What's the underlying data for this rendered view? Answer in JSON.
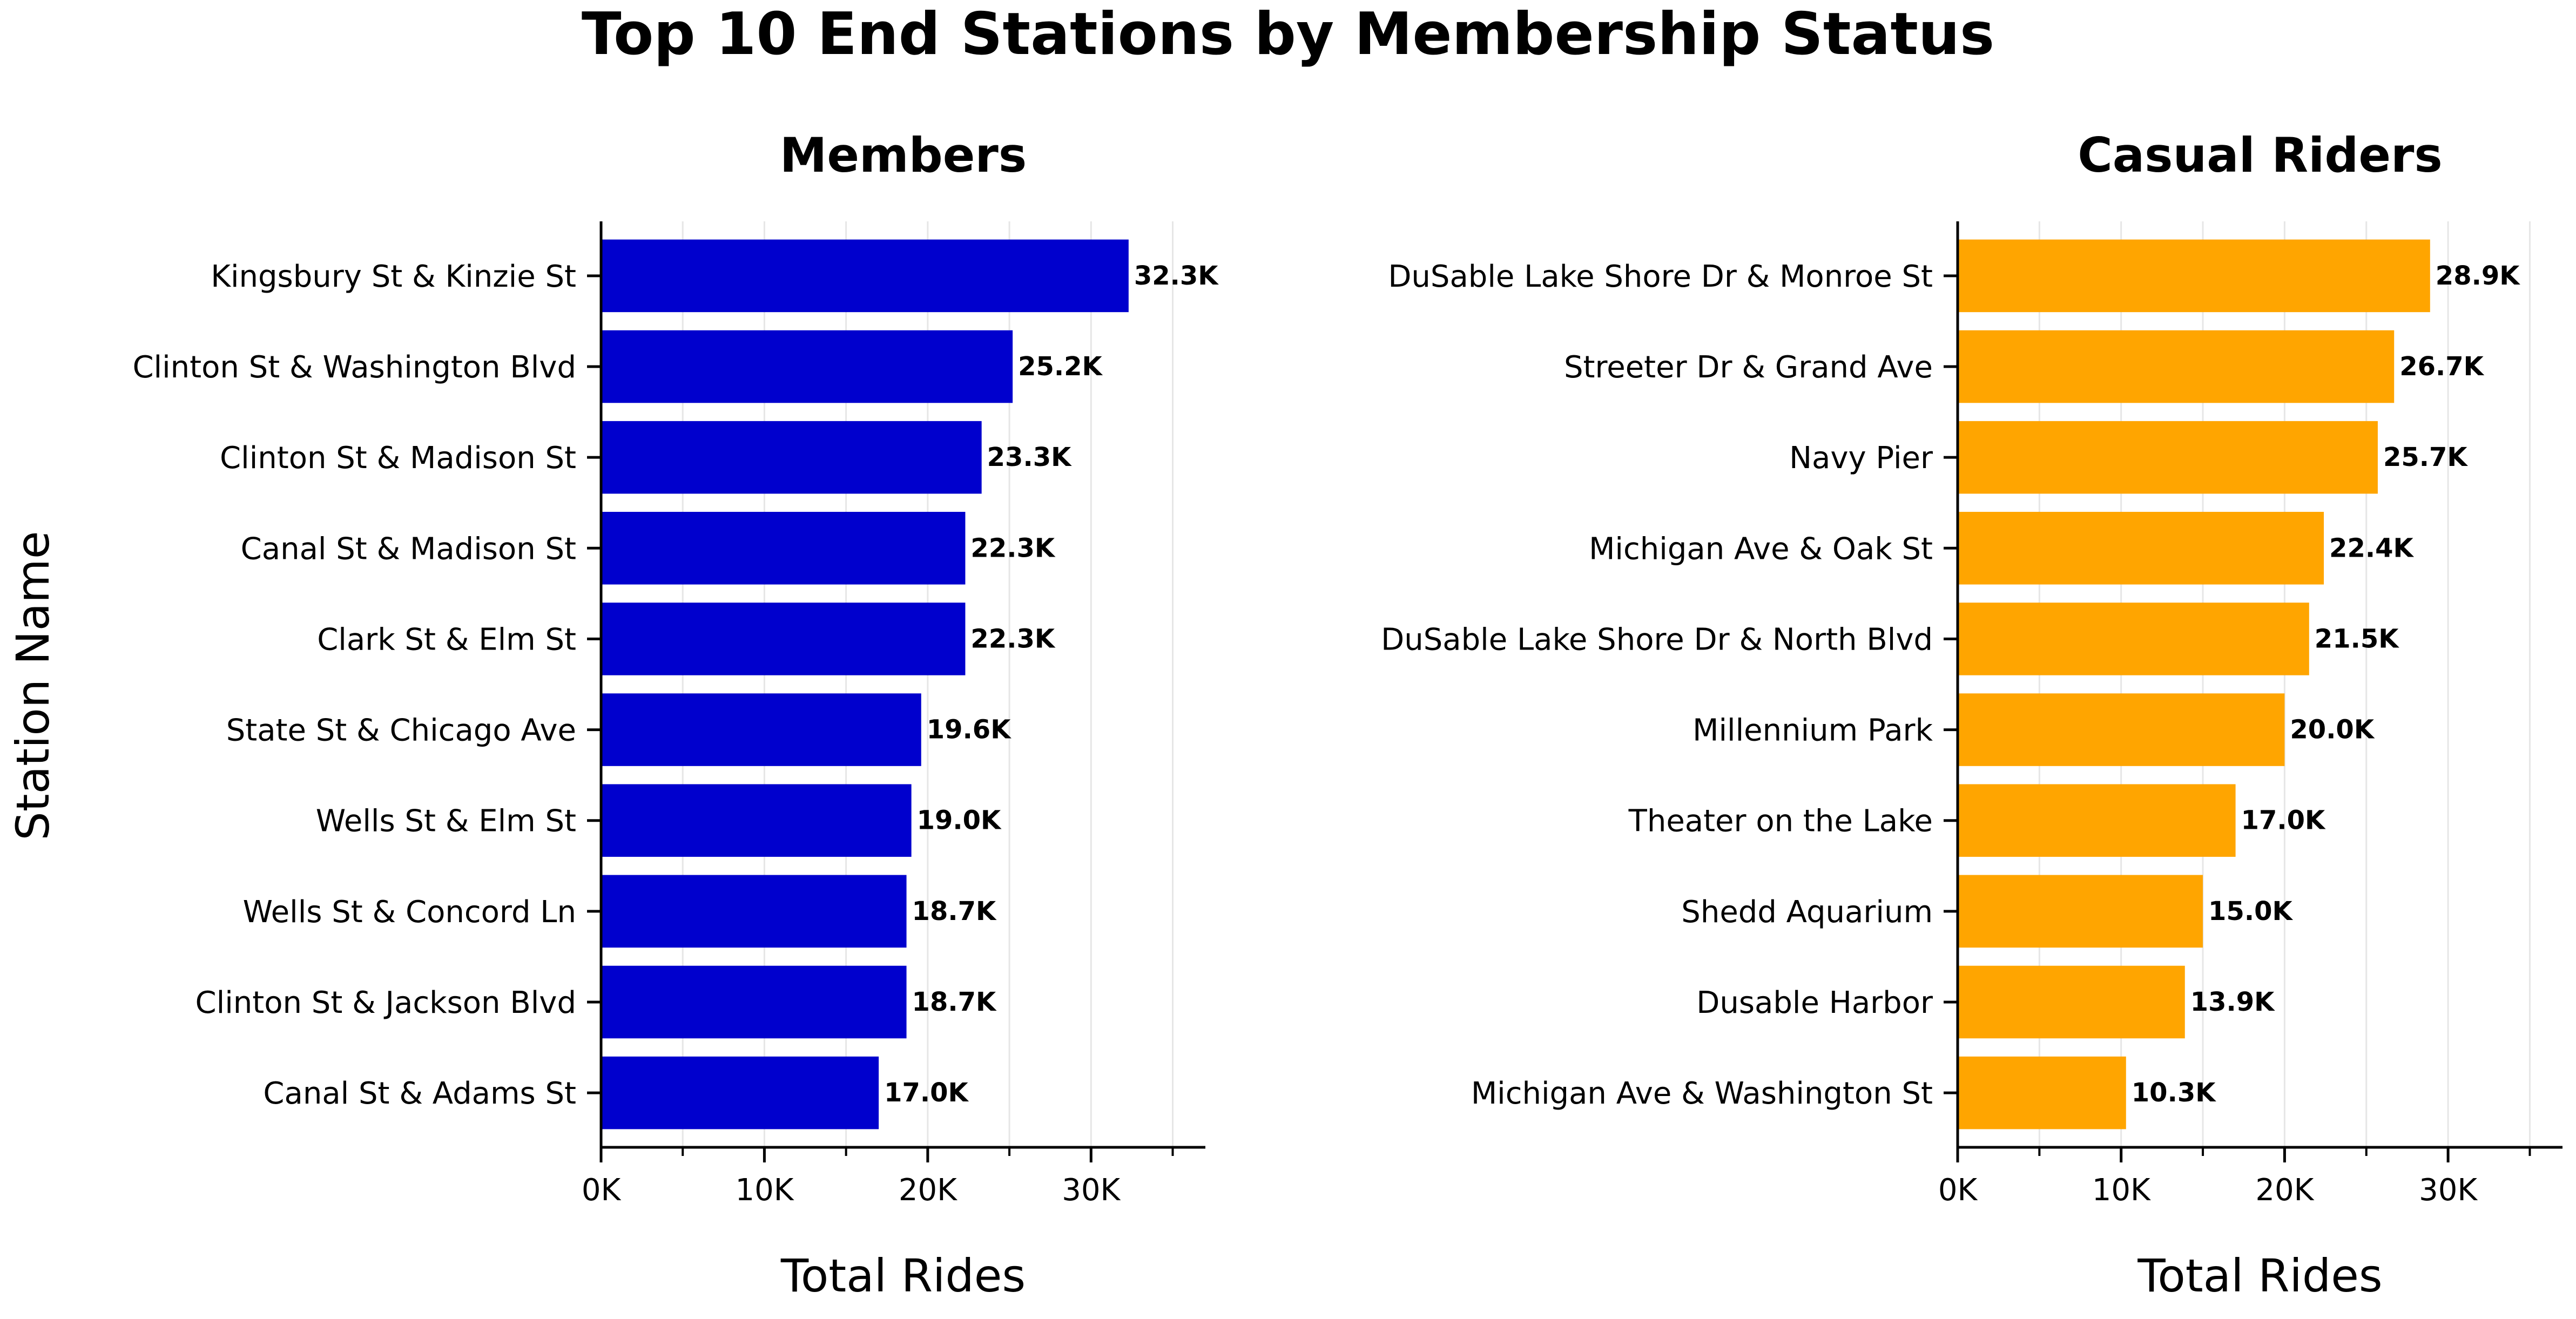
{
  "title": "Top 10 End Stations by Membership Status",
  "ylabel": "Station Name",
  "chart_data": [
    {
      "type": "bar",
      "orientation": "horizontal",
      "title": "Members",
      "xlabel": "Total Rides",
      "ylabel": "Station Name",
      "color": "#0000cd",
      "xlim": [
        0,
        37000
      ],
      "xticks": [
        0,
        10000,
        20000,
        30000
      ],
      "xtick_labels": [
        "0K",
        "10K",
        "20K",
        "30K"
      ],
      "categories": [
        "Kingsbury St & Kinzie St",
        "Clinton St & Washington Blvd",
        "Clinton St & Madison St",
        "Canal St & Madison St",
        "Clark St & Elm St",
        "State St & Chicago Ave",
        "Wells St & Elm St",
        "Wells St & Concord Ln",
        "Clinton St & Jackson Blvd",
        "Canal St & Adams St"
      ],
      "values": [
        32300,
        25200,
        23300,
        22300,
        22300,
        19600,
        19000,
        18700,
        18700,
        17000
      ],
      "data_labels": [
        "32.3K",
        "25.2K",
        "23.3K",
        "22.3K",
        "22.3K",
        "19.6K",
        "19.0K",
        "18.7K",
        "18.7K",
        "17.0K"
      ],
      "grid": "vertical"
    },
    {
      "type": "bar",
      "orientation": "horizontal",
      "title": "Casual Riders",
      "xlabel": "Total Rides",
      "color": "#ffa500",
      "xlim": [
        0,
        37000
      ],
      "xticks": [
        0,
        10000,
        20000,
        30000
      ],
      "xtick_labels": [
        "0K",
        "10K",
        "20K",
        "30K"
      ],
      "categories": [
        "DuSable Lake Shore Dr & Monroe St",
        "Streeter Dr & Grand Ave",
        "Navy Pier",
        "Michigan Ave & Oak St",
        "DuSable Lake Shore Dr & North Blvd",
        "Millennium Park",
        "Theater on the Lake",
        "Shedd Aquarium",
        "Dusable Harbor",
        "Michigan Ave & Washington St"
      ],
      "values": [
        28900,
        26700,
        25700,
        22400,
        21500,
        20000,
        17000,
        15000,
        13900,
        10300
      ],
      "data_labels": [
        "28.9K",
        "26.7K",
        "25.7K",
        "22.4K",
        "21.5K",
        "20.0K",
        "17.0K",
        "15.0K",
        "13.9K",
        "10.3K"
      ],
      "grid": "vertical"
    }
  ]
}
